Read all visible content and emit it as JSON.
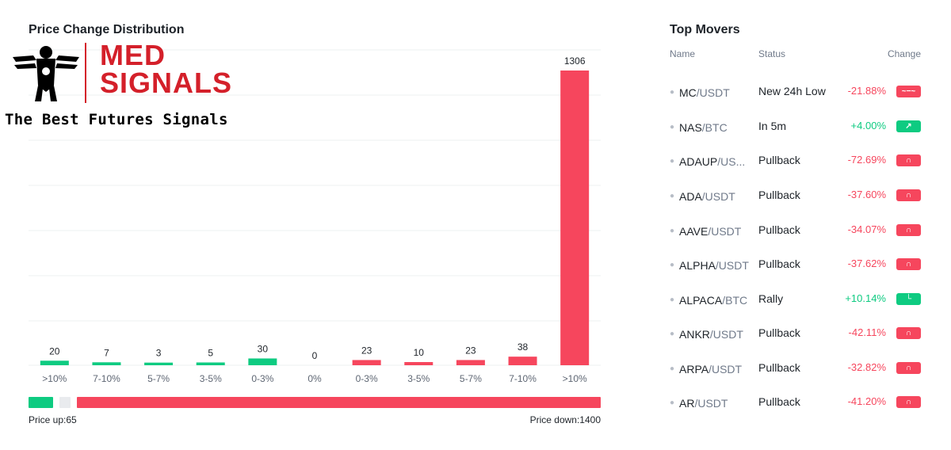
{
  "chart_title": "Price Change Distribution",
  "chart_data": {
    "type": "bar",
    "title": "Price Change Distribution",
    "categories": [
      ">10%",
      "7-10%",
      "5-7%",
      "3-5%",
      "0-3%",
      "0%",
      "0-3%",
      "3-5%",
      "5-7%",
      "7-10%",
      ">10%"
    ],
    "values": [
      20,
      7,
      3,
      5,
      30,
      0,
      23,
      10,
      23,
      38,
      1306
    ],
    "bar_colors": [
      "#0ecb81",
      "#0ecb81",
      "#0ecb81",
      "#0ecb81",
      "#0ecb81",
      "#0ecb81",
      "#f6465d",
      "#f6465d",
      "#f6465d",
      "#f6465d",
      "#f6465d"
    ],
    "ylim": [
      0,
      1306
    ],
    "grid": true
  },
  "summary": {
    "up_label": "Price up:65",
    "down_label": "Price down:1400",
    "up_count": 65,
    "down_count": 1400,
    "up_color": "#0ecb81",
    "down_color": "#f6465d",
    "flat_color": "#e9ebee"
  },
  "logo": {
    "name_line1": "MED",
    "name_line2": "SIGNALS",
    "tagline": "The Best Futures Signals",
    "icon": "eagle-icon",
    "color": "#d4202a"
  },
  "movers": {
    "title": "Top Movers",
    "headers": {
      "name": "Name",
      "status": "Status",
      "change": "Change"
    },
    "rows": [
      {
        "base": "MC",
        "quote": "/USDT",
        "status": "New 24h Low",
        "change": "-21.88%",
        "direction": "down",
        "icon": "new-low-icon",
        "glyph": "~−~"
      },
      {
        "base": "NAS",
        "quote": "/BTC",
        "status": "In 5m",
        "change": "+4.00%",
        "direction": "up",
        "icon": "arrow-up-right-icon",
        "glyph": "↗"
      },
      {
        "base": "ADAUP",
        "quote": "/US...",
        "status": "Pullback",
        "change": "-72.69%",
        "direction": "down",
        "icon": "pullback-icon",
        "glyph": "∩"
      },
      {
        "base": "ADA",
        "quote": "/USDT",
        "status": "Pullback",
        "change": "-37.60%",
        "direction": "down",
        "icon": "pullback-icon",
        "glyph": "∩"
      },
      {
        "base": "AAVE",
        "quote": "/USDT",
        "status": "Pullback",
        "change": "-34.07%",
        "direction": "down",
        "icon": "pullback-icon",
        "glyph": "∩"
      },
      {
        "base": "ALPHA",
        "quote": "/USDT",
        "status": "Pullback",
        "change": "-37.62%",
        "direction": "down",
        "icon": "pullback-icon",
        "glyph": "∩"
      },
      {
        "base": "ALPACA",
        "quote": "/BTC",
        "status": "Rally",
        "change": "+10.14%",
        "direction": "up",
        "icon": "rally-icon",
        "glyph": "└"
      },
      {
        "base": "ANKR",
        "quote": "/USDT",
        "status": "Pullback",
        "change": "-42.11%",
        "direction": "down",
        "icon": "pullback-icon",
        "glyph": "∩"
      },
      {
        "base": "ARPA",
        "quote": "/USDT",
        "status": "Pullback",
        "change": "-32.82%",
        "direction": "down",
        "icon": "pullback-icon",
        "glyph": "∩"
      },
      {
        "base": "AR",
        "quote": "/USDT",
        "status": "Pullback",
        "change": "-41.20%",
        "direction": "down",
        "icon": "pullback-icon",
        "glyph": "∩"
      }
    ]
  }
}
